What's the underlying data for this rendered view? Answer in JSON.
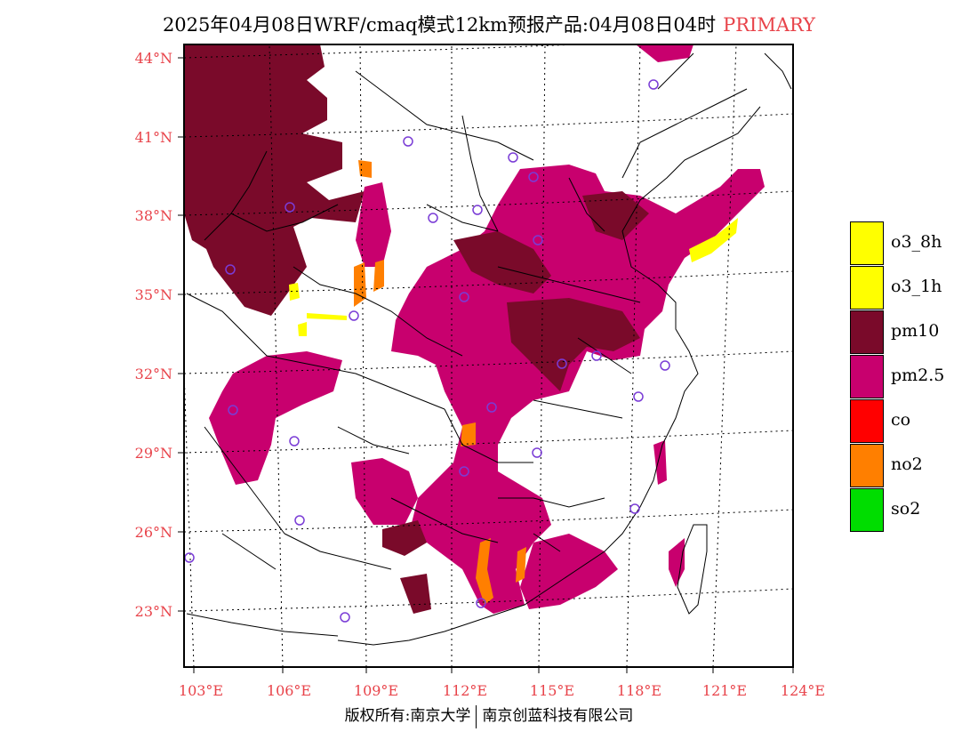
{
  "title": {
    "main": "2025年04月08日WRF/cmaq模式12km预报产品:04月08日04时",
    "tag": "PRIMARY"
  },
  "map": {
    "lat_labels": [
      "44°N",
      "41°N",
      "38°N",
      "35°N",
      "32°N",
      "29°N",
      "26°N",
      "23°N"
    ],
    "lon_labels": [
      "103°E",
      "106°E",
      "109°E",
      "112°E",
      "115°E",
      "118°E",
      "121°E",
      "124°E"
    ]
  },
  "legend": {
    "items": [
      {
        "label": "o3_8h",
        "color": "#ffff00"
      },
      {
        "label": "o3_1h",
        "color": "#ffff00"
      },
      {
        "label": "pm10",
        "color": "#7a0a2a"
      },
      {
        "label": "pm2.5",
        "color": "#c8006e"
      },
      {
        "label": "co",
        "color": "#ff0000"
      },
      {
        "label": "no2",
        "color": "#ff7f00"
      },
      {
        "label": "so2",
        "color": "#00dd00"
      }
    ]
  },
  "footer": {
    "left": "版权所有:南京大学",
    "right": "南京创蓝科技有限公司"
  },
  "colors": {
    "pm10": "#7a0a2a",
    "pm25": "#c8006e",
    "no2": "#ff7f00",
    "o3": "#ffff00",
    "station": "#7a3cd6",
    "label": "#e8434a"
  }
}
